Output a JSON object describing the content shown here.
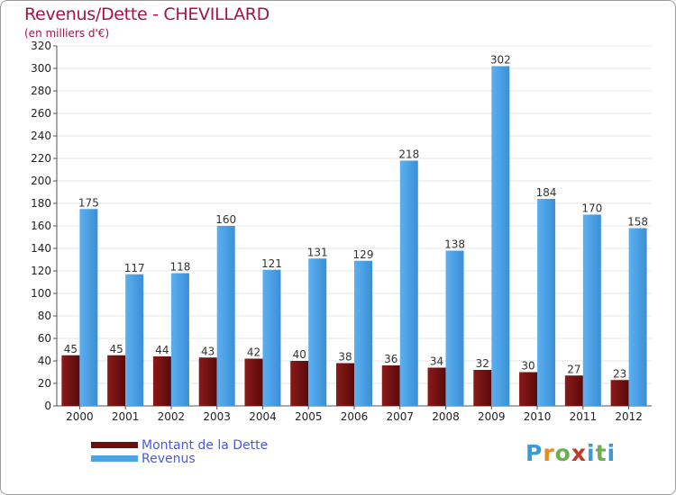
{
  "header": {
    "title": "Revenus/Dette - CHEVILLARD",
    "subtitle": "(en milliers d'€)"
  },
  "logo": {
    "text": "Proxiti",
    "letters": [
      "P",
      "r",
      "o",
      "x",
      "i",
      "t",
      "i"
    ],
    "colors": [
      "#3a9ad9",
      "#e8891a",
      "#6ab04c",
      "#c0392b",
      "#3a9ad9",
      "#6ab04c",
      "#3a9ad9"
    ]
  },
  "colors": {
    "dette": "#6e0f0f",
    "revenus": "#4ea3e6",
    "axis": "#555555",
    "grid": "#e4e4e4",
    "title": "#a0144a",
    "legend_text": "#4a5ad8"
  },
  "chart_data": {
    "type": "bar",
    "title": "Revenus/Dette - CHEVILLARD",
    "subtitle": "(en milliers d'€)",
    "categories": [
      "2000",
      "2001",
      "2002",
      "2003",
      "2004",
      "2005",
      "2006",
      "2007",
      "2008",
      "2009",
      "2010",
      "2011",
      "2012"
    ],
    "series": [
      {
        "name": "Montant de la Dette",
        "color": "#6e0f0f",
        "values": [
          45,
          45,
          44,
          43,
          42,
          40,
          38,
          36,
          34,
          32,
          30,
          27,
          23
        ]
      },
      {
        "name": "Revenus",
        "color": "#4ea3e6",
        "values": [
          175,
          117,
          118,
          160,
          121,
          131,
          129,
          218,
          138,
          302,
          184,
          170,
          158
        ]
      }
    ],
    "ylim": [
      0,
      320
    ],
    "yticks": [
      0,
      20,
      40,
      60,
      80,
      100,
      120,
      140,
      160,
      180,
      200,
      220,
      240,
      260,
      280,
      300,
      320
    ],
    "grid": true,
    "legend_position": "bottom-left",
    "data_labels": true
  }
}
